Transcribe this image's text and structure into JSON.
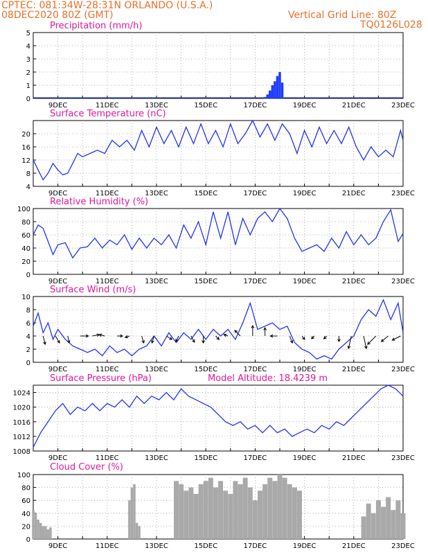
{
  "header": {
    "line1_left": "CPTEC:   081:34W-28:31N   ORLANDO (U.S.A.)",
    "line2_left": "08DEC2020 80Z (GMT)",
    "line1_right": "Vertical Grid Line: 80Z",
    "line2_right": "TQ0126L028",
    "color": "#e8702a"
  },
  "colors": {
    "title": "#e0189a",
    "line": "#2233ee",
    "precip_bar": "#1e3cff",
    "cloud_bar": "#a9a9a9",
    "arrow": "#000000"
  },
  "x_axis": {
    "start_day": 8,
    "end_day": 23,
    "tick_days": [
      9,
      11,
      13,
      15,
      17,
      19,
      21,
      23
    ],
    "tick_labels": [
      "9DEC",
      "11DEC",
      "13DEC",
      "15DEC",
      "17DEC",
      "19DEC",
      "21DEC",
      "23DEC"
    ]
  },
  "chart_data": [
    {
      "id": "precip",
      "type": "bar",
      "title": "Precipitation (mm/h)",
      "ylim": [
        0,
        5
      ],
      "yticks": [
        0,
        1,
        2,
        3,
        4,
        5
      ],
      "x_day": [
        17.4,
        17.5,
        17.6,
        17.7,
        17.8,
        17.9,
        18.0,
        18.1
      ],
      "values": [
        0.1,
        0.3,
        0.6,
        1.0,
        1.3,
        1.7,
        2.0,
        1.2
      ]
    },
    {
      "id": "temp",
      "type": "line",
      "title": "Surface Temperature (nC)",
      "ylim": [
        4,
        24
      ],
      "yticks": [
        4,
        8,
        12,
        16,
        20
      ],
      "x_day": [
        8.0,
        8.2,
        8.4,
        8.6,
        8.8,
        9.0,
        9.2,
        9.4,
        9.6,
        9.8,
        10.0,
        10.3,
        10.6,
        10.9,
        11.2,
        11.5,
        11.8,
        12.1,
        12.4,
        12.7,
        13.0,
        13.3,
        13.6,
        13.9,
        14.2,
        14.5,
        14.8,
        15.1,
        15.4,
        15.7,
        16.0,
        16.3,
        16.6,
        16.9,
        17.2,
        17.5,
        17.8,
        18.1,
        18.4,
        18.7,
        19.0,
        19.3,
        19.6,
        19.9,
        20.2,
        20.5,
        20.8,
        21.1,
        21.4,
        21.7,
        22.0,
        22.3,
        22.6,
        22.9,
        23.0
      ],
      "values": [
        12,
        9,
        6,
        8,
        11,
        9,
        7.5,
        8,
        11,
        14,
        13,
        14,
        15,
        14,
        18,
        16,
        18,
        15,
        21,
        16,
        22,
        17,
        21,
        16,
        22,
        17,
        23,
        17,
        21,
        16,
        23,
        17,
        20,
        24,
        19,
        23,
        18,
        23,
        20,
        14,
        21,
        16,
        22,
        17,
        21,
        17,
        22,
        16,
        12,
        16,
        13,
        15,
        13,
        21,
        18
      ]
    },
    {
      "id": "rh",
      "type": "line",
      "title": "Relative Humidity (%)",
      "ylim": [
        0,
        100
      ],
      "yticks": [
        0,
        20,
        40,
        60,
        80,
        100
      ],
      "x_day": [
        8.0,
        8.2,
        8.4,
        8.6,
        8.8,
        9.0,
        9.3,
        9.6,
        9.9,
        10.2,
        10.5,
        10.8,
        11.1,
        11.4,
        11.7,
        12.0,
        12.3,
        12.6,
        12.9,
        13.2,
        13.5,
        13.8,
        14.1,
        14.4,
        14.7,
        15.0,
        15.3,
        15.6,
        15.9,
        16.2,
        16.5,
        16.8,
        17.1,
        17.4,
        17.7,
        18.0,
        18.3,
        18.6,
        18.9,
        19.2,
        19.5,
        19.8,
        20.1,
        20.4,
        20.7,
        21.0,
        21.3,
        21.6,
        21.9,
        22.2,
        22.5,
        22.8,
        23.0
      ],
      "values": [
        60,
        75,
        70,
        50,
        30,
        45,
        48,
        25,
        40,
        42,
        55,
        40,
        52,
        45,
        60,
        38,
        55,
        40,
        55,
        45,
        60,
        40,
        75,
        55,
        80,
        45,
        95,
        55,
        95,
        45,
        85,
        60,
        85,
        95,
        80,
        100,
        85,
        55,
        35,
        40,
        45,
        35,
        55,
        40,
        65,
        45,
        60,
        45,
        55,
        80,
        98,
        50,
        62
      ]
    },
    {
      "id": "wind",
      "type": "line",
      "title": "Surface Wind (m/s)",
      "ylim": [
        0,
        10
      ],
      "yticks": [
        0,
        2,
        4,
        6,
        8,
        10
      ],
      "x_day": [
        8.0,
        8.2,
        8.4,
        8.6,
        8.8,
        9.0,
        9.3,
        9.6,
        9.9,
        10.2,
        10.5,
        10.8,
        11.1,
        11.4,
        11.7,
        12.0,
        12.3,
        12.6,
        12.9,
        13.2,
        13.5,
        13.8,
        14.1,
        14.4,
        14.7,
        15.0,
        15.3,
        15.6,
        15.9,
        16.2,
        16.5,
        16.8,
        17.1,
        17.4,
        17.7,
        18.0,
        18.3,
        18.6,
        18.9,
        19.2,
        19.5,
        19.8,
        20.1,
        20.4,
        20.7,
        21.0,
        21.3,
        21.6,
        21.9,
        22.2,
        22.5,
        22.8,
        23.0
      ],
      "values": [
        5.5,
        7.5,
        4.5,
        6,
        3.5,
        5,
        3.5,
        2.5,
        2,
        1.5,
        2,
        1,
        2.5,
        1.5,
        2,
        1,
        2,
        2.5,
        4,
        2.5,
        4.5,
        3,
        4.5,
        3.5,
        5,
        3.5,
        5,
        4,
        5,
        3.5,
        6,
        9,
        5,
        5.5,
        6,
        5,
        5.5,
        3,
        2,
        1.5,
        0.5,
        1,
        0.5,
        2,
        3,
        4,
        6.5,
        8,
        7,
        9.5,
        6.5,
        9,
        4.5
      ],
      "arrows": [
        {
          "x_day": 8.4,
          "u": 0.3,
          "v": -1.2
        },
        {
          "x_day": 8.9,
          "u": 0.6,
          "v": -1.0
        },
        {
          "x_day": 9.4,
          "u": 0.2,
          "v": -1.0
        },
        {
          "x_day": 9.9,
          "u": 1.2,
          "v": 0.0
        },
        {
          "x_day": 10.4,
          "u": 1.0,
          "v": 0.2
        },
        {
          "x_day": 10.9,
          "u": -0.8,
          "v": 0.2
        },
        {
          "x_day": 11.4,
          "u": 0.8,
          "v": 0.0
        },
        {
          "x_day": 11.9,
          "u": -0.6,
          "v": -0.2
        },
        {
          "x_day": 12.4,
          "u": 0.3,
          "v": -1.0
        },
        {
          "x_day": 12.9,
          "u": -0.3,
          "v": -1.0
        },
        {
          "x_day": 13.4,
          "u": 0.8,
          "v": -0.5
        },
        {
          "x_day": 13.9,
          "u": -0.4,
          "v": -0.8
        },
        {
          "x_day": 14.4,
          "u": 0.5,
          "v": -0.9
        },
        {
          "x_day": 14.9,
          "u": 0.0,
          "v": -1.0
        },
        {
          "x_day": 15.4,
          "u": 0.5,
          "v": -0.5
        },
        {
          "x_day": 15.9,
          "u": -0.6,
          "v": 0.2
        },
        {
          "x_day": 16.4,
          "u": -0.8,
          "v": 0.8
        },
        {
          "x_day": 16.9,
          "u": 0.0,
          "v": 1.5
        },
        {
          "x_day": 17.4,
          "u": 0.0,
          "v": 1.2
        },
        {
          "x_day": 17.9,
          "u": -1.0,
          "v": 0.0
        },
        {
          "x_day": 18.4,
          "u": 0.4,
          "v": -1.0
        },
        {
          "x_day": 18.9,
          "u": 0.4,
          "v": -0.5
        },
        {
          "x_day": 19.4,
          "u": -0.4,
          "v": -0.4
        },
        {
          "x_day": 19.9,
          "u": -0.4,
          "v": -0.4
        },
        {
          "x_day": 20.4,
          "u": 0.0,
          "v": -0.8
        },
        {
          "x_day": 20.9,
          "u": -0.4,
          "v": -1.8
        },
        {
          "x_day": 21.4,
          "u": 0.4,
          "v": -1.8
        },
        {
          "x_day": 21.9,
          "u": -1.2,
          "v": -1.2
        },
        {
          "x_day": 22.4,
          "u": -1.0,
          "v": -0.8
        },
        {
          "x_day": 22.9,
          "u": -1.2,
          "v": -0.6
        }
      ]
    },
    {
      "id": "pressure",
      "type": "line",
      "title": "Surface Pressure (hPa)",
      "subtitle": "Model Altitude: 18.4239 m",
      "ylim": [
        1008,
        1026
      ],
      "yticks": [
        1008,
        1012,
        1016,
        1020,
        1024
      ],
      "x_day": [
        8.0,
        8.3,
        8.6,
        8.9,
        9.2,
        9.5,
        9.8,
        10.1,
        10.4,
        10.7,
        11.0,
        11.3,
        11.6,
        11.9,
        12.2,
        12.5,
        12.8,
        13.1,
        13.4,
        13.7,
        14.0,
        14.3,
        14.6,
        14.9,
        15.2,
        15.5,
        15.8,
        16.1,
        16.4,
        16.7,
        17.0,
        17.3,
        17.6,
        17.9,
        18.2,
        18.5,
        18.8,
        19.1,
        19.4,
        19.7,
        20.0,
        20.3,
        20.6,
        20.9,
        21.2,
        21.5,
        21.8,
        22.1,
        22.4,
        22.7,
        23.0
      ],
      "values": [
        1009,
        1013,
        1016,
        1019,
        1021,
        1018,
        1020,
        1019,
        1021,
        1019,
        1021,
        1020,
        1022,
        1020,
        1023,
        1021,
        1023,
        1022,
        1024,
        1022,
        1025,
        1023,
        1022,
        1021,
        1020,
        1018,
        1016,
        1015,
        1016,
        1014,
        1015,
        1013,
        1015,
        1013,
        1014,
        1012,
        1013,
        1014,
        1013,
        1015,
        1014,
        1016,
        1015,
        1017,
        1019,
        1021,
        1023,
        1025,
        1026,
        1025,
        1023
      ]
    },
    {
      "id": "cloud",
      "type": "bar",
      "title": "Cloud Cover (%)",
      "ylim": [
        0,
        100
      ],
      "yticks": [
        0,
        20,
        40,
        60,
        80,
        100
      ],
      "segments": [
        {
          "x_day": [
            8.0,
            8.1,
            8.2,
            8.3,
            8.4,
            8.5,
            8.6,
            8.7
          ],
          "values": [
            45,
            40,
            30,
            25,
            20,
            20,
            15,
            18
          ]
        },
        {
          "x_day": [
            11.9,
            12.0,
            12.1,
            12.2,
            12.3
          ],
          "values": [
            60,
            80,
            85,
            25,
            20
          ]
        },
        {
          "x_day": [
            13.8,
            14.0,
            14.2,
            14.4,
            14.6,
            14.8,
            15.0,
            15.2,
            15.4,
            15.6,
            15.8,
            16.0,
            16.2,
            16.4,
            16.6,
            16.8,
            17.0,
            17.2,
            17.4,
            17.6,
            17.8,
            18.0,
            18.2,
            18.4,
            18.6,
            18.8
          ],
          "values": [
            90,
            85,
            75,
            80,
            70,
            85,
            90,
            95,
            80,
            90,
            75,
            70,
            90,
            85,
            95,
            80,
            60,
            75,
            85,
            95,
            90,
            100,
            95,
            85,
            80,
            75
          ]
        },
        {
          "x_day": [
            21.4,
            21.6,
            21.8,
            22.0,
            22.2,
            22.4,
            22.6,
            22.8,
            23.0
          ],
          "values": [
            35,
            55,
            40,
            60,
            50,
            65,
            45,
            60,
            40
          ]
        }
      ]
    }
  ]
}
